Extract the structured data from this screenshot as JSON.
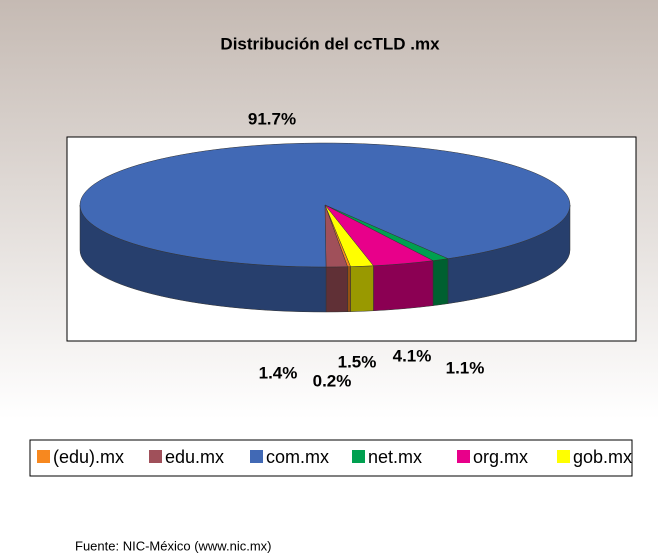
{
  "chart_data": {
    "type": "pie3d",
    "title": "Distribución del ccTLD .mx",
    "categories": [
      "(edu).mx",
      "edu.mx",
      "com.mx",
      "net.mx",
      "org.mx",
      "gob.mx"
    ],
    "values": [
      0.2,
      1.4,
      91.7,
      1.1,
      4.1,
      1.5
    ],
    "value_labels": [
      "0.2%",
      "1.4%",
      "91.7%",
      "1.1%",
      "4.1%",
      "1.5%"
    ],
    "colors": [
      "#f7881f",
      "#a0505a",
      "#4169b5",
      "#00a050",
      "#e8008a",
      "#ffff00"
    ],
    "legend": "bottom",
    "source": "Fuente: NIC-México (www.nic.mx)"
  }
}
